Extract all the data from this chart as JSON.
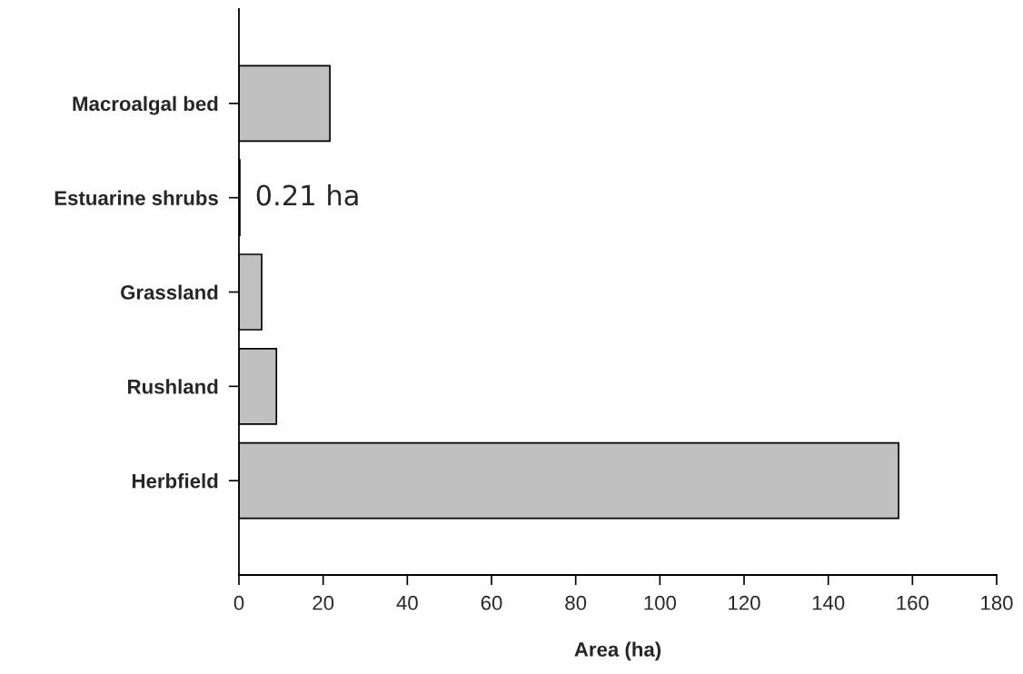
{
  "chart_data": {
    "type": "bar",
    "orientation": "horizontal",
    "xlabel": "Area (ha)",
    "categories": [
      "Macroalgal bed",
      "Estuarine shrubs",
      "Grassland",
      "Rushland",
      "Herbfield"
    ],
    "values": [
      21.6,
      0.21,
      5.4,
      8.9,
      156.7
    ],
    "value_labels": [
      null,
      "0.21 ha",
      null,
      null,
      null
    ],
    "color": "#c0c0c0",
    "xlim": [
      0,
      180
    ],
    "xticks": [
      0,
      20,
      40,
      60,
      80,
      100,
      120,
      140,
      160,
      180
    ],
    "grid": false,
    "legend": false
  }
}
